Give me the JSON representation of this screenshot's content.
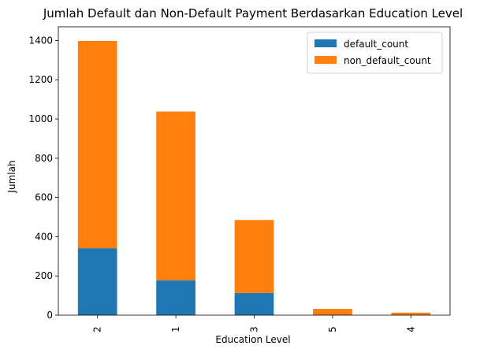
{
  "chart_data": {
    "type": "bar",
    "stacked": true,
    "title": "Jumlah Default dan Non-Default Payment Berdasarkan Education Level",
    "xlabel": "Education Level",
    "ylabel": "Jumlah",
    "categories": [
      "2",
      "1",
      "3",
      "5",
      "4"
    ],
    "series": [
      {
        "name": "default_count",
        "color": "#1f77b4",
        "values": [
          341,
          178,
          113,
          2,
          1
        ]
      },
      {
        "name": "non_default_count",
        "color": "#ff7f0e",
        "values": [
          1057,
          860,
          372,
          30,
          12
        ]
      }
    ],
    "ylim": [
      0,
      1470
    ],
    "yticks": [
      "0",
      "200",
      "400",
      "600",
      "800",
      "1000",
      "1200",
      "1400"
    ],
    "grid": false,
    "legend_position": "top-right"
  }
}
